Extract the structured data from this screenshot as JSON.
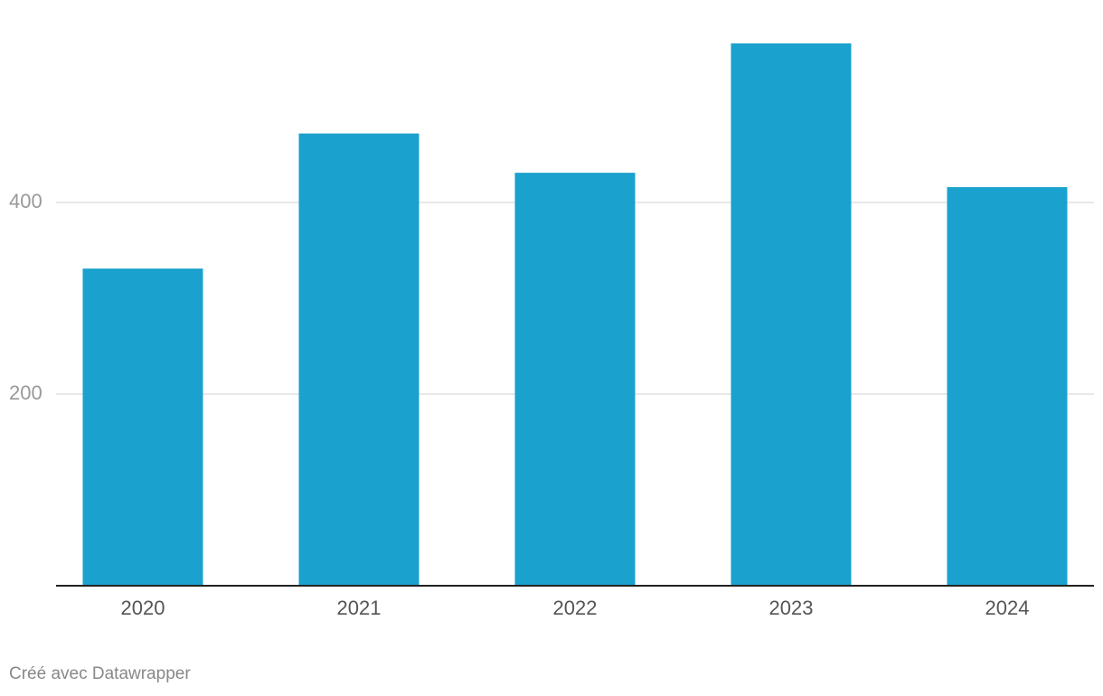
{
  "chart_data": {
    "type": "bar",
    "categories": [
      "2020",
      "2021",
      "2022",
      "2023",
      "2024"
    ],
    "values": [
      331,
      472,
      431,
      566,
      416
    ],
    "color": "#1aa1cd",
    "ylim": [
      0,
      600
    ],
    "yticks": [
      200,
      400
    ],
    "grid": true
  },
  "footer": "Créé avec Datawrapper"
}
